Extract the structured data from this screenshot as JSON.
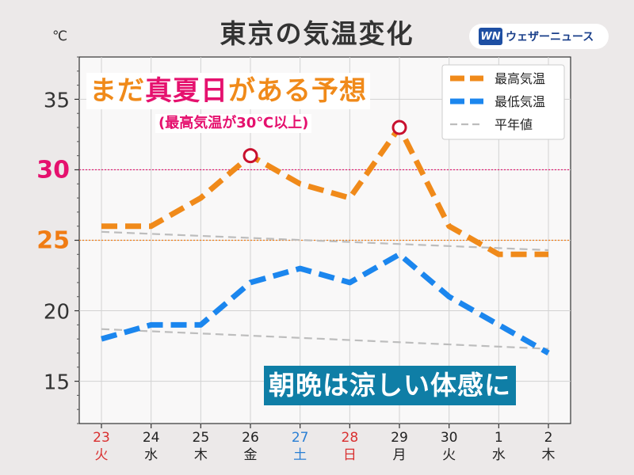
{
  "header": {
    "title": "東京の気温変化",
    "unit": "℃",
    "brand_logo": "WN",
    "brand_name": "ウェザーニュース"
  },
  "annotations": {
    "headline_pre": "まだ",
    "headline_hl": "真夏日",
    "headline_post": "がある予想",
    "subhead": "(最高気温が30℃以上)",
    "bottom_note": "朝晩は涼しい体感に"
  },
  "colors": {
    "max": "#f08a1a",
    "min": "#1b86ee",
    "normal": "#bdbdbd",
    "hot_mark": "#c8102e",
    "line30": "#e5116e",
    "line25": "#f07c14",
    "weekday": "#222222",
    "saturday": "#2a7fd4",
    "holiday": "#d93030",
    "bottom_note_bg": "#0f7ea6"
  },
  "chart_data": {
    "type": "line",
    "title": "東京の気温変化",
    "ylabel": "℃",
    "ylim": [
      12,
      38
    ],
    "y_ticks": [
      15,
      20,
      25,
      30,
      35
    ],
    "grid": true,
    "legend": "top-right",
    "categories": [
      "23",
      "24",
      "25",
      "26",
      "27",
      "28",
      "29",
      "30",
      "1",
      "2"
    ],
    "weekdays": [
      "火",
      "水",
      "木",
      "金",
      "土",
      "日",
      "月",
      "火",
      "水",
      "木"
    ],
    "day_colors": [
      "holiday",
      "weekday",
      "weekday",
      "weekday",
      "saturday",
      "holiday",
      "weekday",
      "weekday",
      "weekday",
      "weekday"
    ],
    "series": [
      {
        "name": "最高気温",
        "color_key": "max",
        "values": [
          26,
          26,
          28,
          31,
          29,
          28,
          33,
          26,
          24,
          24
        ]
      },
      {
        "name": "最低気温",
        "color_key": "min",
        "values": [
          18,
          19,
          19,
          22,
          23,
          22,
          24,
          21,
          19,
          17
        ]
      },
      {
        "name": "平年値",
        "color_key": "normal",
        "values": [
          null,
          null,
          null,
          null,
          null,
          null,
          null,
          null,
          null,
          null
        ]
      }
    ],
    "normal_max_endpoints": [
      25.6,
      24.3
    ],
    "normal_min_endpoints": [
      18.7,
      17.3
    ],
    "reference_lines": [
      {
        "value": 30,
        "label": "30",
        "color_key": "line30"
      },
      {
        "value": 25,
        "label": "25",
        "color_key": "line25"
      }
    ],
    "hot_day_markers": [
      3,
      6
    ]
  }
}
